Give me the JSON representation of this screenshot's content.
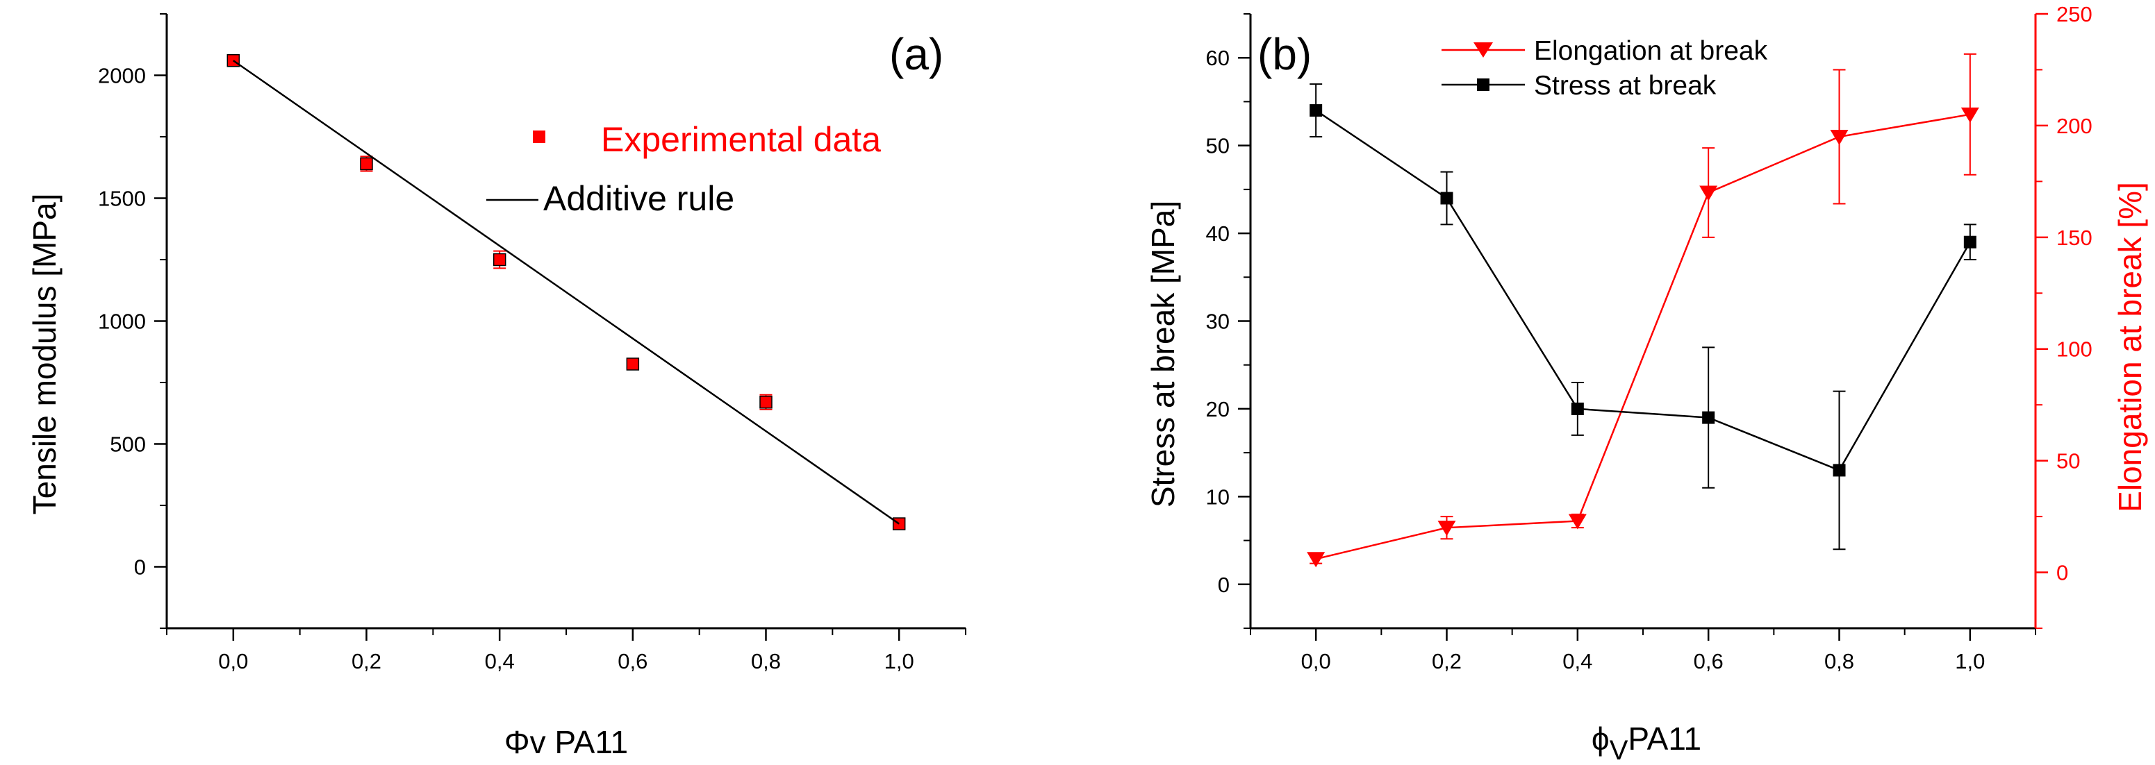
{
  "chart_data": [
    {
      "type": "scatter",
      "panel_label": "(a)",
      "xlabel_symbol": "Φv",
      "xlabel_rest": " PA11",
      "ylabel": "Tensile modulus [MPa]",
      "xlim": [
        -0.1,
        1.1
      ],
      "ylim": [
        -250,
        2250
      ],
      "x_ticks": [
        0.0,
        0.2,
        0.4,
        0.6,
        0.8,
        1.0
      ],
      "x_tick_labels": [
        "0,0",
        "0,2",
        "0,4",
        "0,6",
        "0,8",
        "1,0"
      ],
      "y_ticks": [
        0,
        500,
        1000,
        1500,
        2000
      ],
      "y_tick_labels": [
        "0",
        "500",
        "1000",
        "1500",
        "2000"
      ],
      "legend": [
        "Experimental data",
        "Additive rule"
      ],
      "series": [
        {
          "name": "Experimental data",
          "color": "#ff0000",
          "marker": "square",
          "x": [
            0.0,
            0.2,
            0.4,
            0.6,
            0.8,
            1.0
          ],
          "y": [
            2060,
            1640,
            1250,
            825,
            670,
            175
          ],
          "err": [
            15,
            30,
            35,
            15,
            30,
            20
          ]
        },
        {
          "name": "Additive rule",
          "color": "#000000",
          "line": true,
          "x": [
            0.0,
            1.0
          ],
          "y": [
            2060,
            175
          ]
        }
      ]
    },
    {
      "type": "line",
      "panel_label": "(b)",
      "xlabel_symbol": "ϕ",
      "xlabel_sub": "V",
      "xlabel_rest": "PA11",
      "ylabel": "Stress at break [MPa]",
      "y2label": "Elongation at break [%]",
      "xlim": [
        -0.1,
        1.1
      ],
      "ylim": [
        -5,
        65
      ],
      "y2lim": [
        -25,
        250
      ],
      "x_ticks": [
        0.0,
        0.2,
        0.4,
        0.6,
        0.8,
        1.0
      ],
      "x_tick_labels": [
        "0,0",
        "0,2",
        "0,4",
        "0,6",
        "0,8",
        "1,0"
      ],
      "y_ticks": [
        0,
        10,
        20,
        30,
        40,
        50,
        60
      ],
      "y_tick_labels": [
        "0",
        "10",
        "20",
        "30",
        "40",
        "50",
        "60"
      ],
      "y2_ticks": [
        0,
        50,
        100,
        150,
        200,
        250
      ],
      "y2_tick_labels": [
        "0",
        "50",
        "100",
        "150",
        "200",
        "250"
      ],
      "legend": [
        "Elongation at break",
        "Stress at break"
      ],
      "series": [
        {
          "name": "Elongation at break",
          "axis": "right",
          "color": "#ff0000",
          "marker": "triangle-down",
          "x": [
            0.0,
            0.2,
            0.4,
            0.6,
            0.8,
            1.0
          ],
          "y": [
            6,
            20,
            23,
            170,
            195,
            205
          ],
          "err": [
            2,
            5,
            3,
            20,
            30,
            27
          ]
        },
        {
          "name": "Stress at break",
          "axis": "left",
          "color": "#000000",
          "marker": "square",
          "x": [
            0.0,
            0.2,
            0.4,
            0.6,
            0.8,
            1.0
          ],
          "y": [
            54,
            44,
            20,
            19,
            13,
            39
          ],
          "err": [
            3,
            3,
            3,
            8,
            9,
            2
          ]
        }
      ]
    }
  ]
}
